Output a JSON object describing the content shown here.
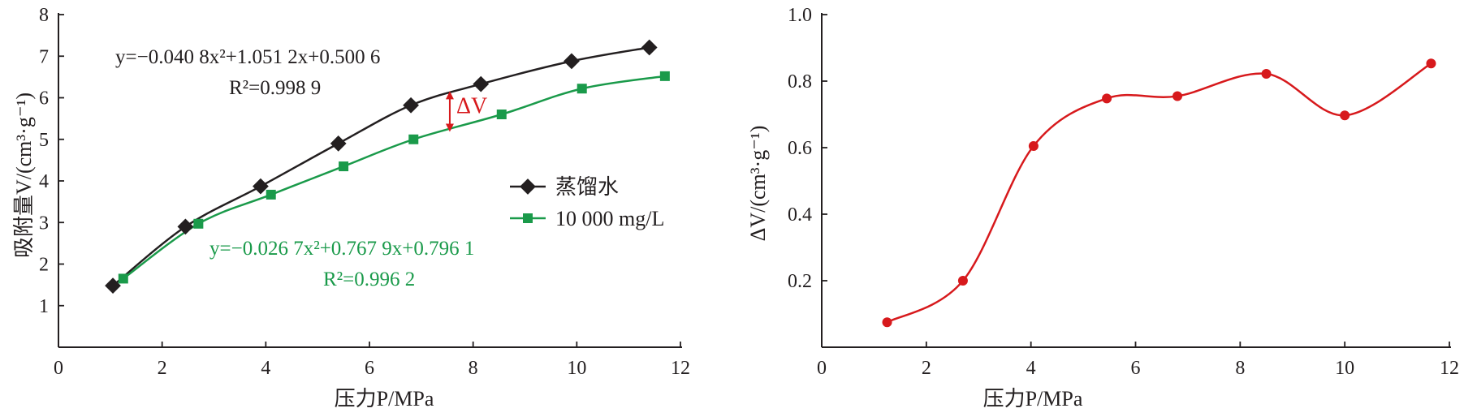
{
  "chart_data": [
    {
      "type": "line",
      "panel": "left",
      "xlabel": "压力P/MPa",
      "ylabel": "吸附量V/(cm³·g⁻¹)",
      "xlim": [
        0,
        12
      ],
      "ylim": [
        0,
        8
      ],
      "xticks": [
        0,
        2,
        4,
        6,
        8,
        10,
        12
      ],
      "yticks": [
        1,
        2,
        3,
        4,
        5,
        6,
        7,
        8
      ],
      "grid": false,
      "legend_position": "center-right",
      "series": [
        {
          "name": "蒸馏水",
          "color": "#231f20",
          "marker": "diamond",
          "x": [
            1.05,
            2.45,
            3.9,
            5.4,
            6.8,
            8.15,
            9.9,
            11.4
          ],
          "y": [
            1.48,
            2.9,
            3.87,
            4.9,
            5.82,
            6.33,
            6.88,
            7.21
          ],
          "fit_equation": "y=−0.040 8x²+1.051 2x+0.500 6",
          "r2": "R²=0.998 9"
        },
        {
          "name": "10 000 mg/L",
          "color": "#1a9a4a",
          "marker": "square",
          "x": [
            1.25,
            2.7,
            4.1,
            5.5,
            6.85,
            8.55,
            10.1,
            11.7
          ],
          "y": [
            1.65,
            2.97,
            3.67,
            4.35,
            5.0,
            5.6,
            6.22,
            6.52
          ],
          "fit_equation": "y=−0.026 7x²+0.767 9x+0.796 1",
          "r2": "R²=0.996 2"
        }
      ],
      "annotation": {
        "text": "ΔV",
        "color": "#d7191c",
        "x": 7.55,
        "y_top": 6.12,
        "y_bottom": 5.22
      }
    },
    {
      "type": "line",
      "panel": "right",
      "xlabel": "压力P/MPa",
      "ylabel": "ΔV/(cm³·g⁻¹)",
      "xlim": [
        0,
        12
      ],
      "ylim": [
        0,
        1.0
      ],
      "xticks": [
        0,
        2,
        4,
        6,
        8,
        10,
        12
      ],
      "yticks": [
        0.2,
        0.4,
        0.6,
        0.8,
        1.0
      ],
      "grid": false,
      "series": [
        {
          "color": "#d7191c",
          "marker": "circle",
          "x": [
            1.25,
            2.7,
            4.05,
            5.45,
            6.8,
            8.5,
            10.0,
            11.65
          ],
          "y": [
            0.075,
            0.2,
            0.605,
            0.748,
            0.755,
            0.822,
            0.697,
            0.853
          ]
        }
      ]
    }
  ]
}
